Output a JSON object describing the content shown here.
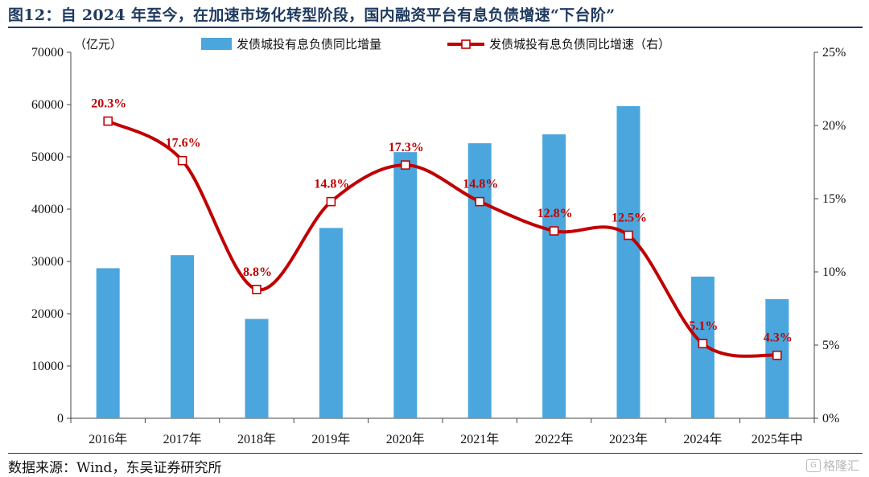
{
  "title": "图12：自 2024 年至今，在加速市场化转型阶段，国内融资平台有息负债增速“下台阶”",
  "source": "数据来源：Wind，东吴证券研究所",
  "watermark": "格隆汇",
  "chart_data": {
    "type": "bar",
    "categories": [
      "2016年",
      "2017年",
      "2018年",
      "2019年",
      "2020年",
      "2021年",
      "2022年",
      "2023年",
      "2024年",
      "2025年中"
    ],
    "y_left_unit": "（亿元）",
    "ylim_left": [
      0,
      70000
    ],
    "yticks_left": [
      "0",
      "10000",
      "20000",
      "30000",
      "40000",
      "50000",
      "60000",
      "70000"
    ],
    "ylim_right": [
      0,
      25
    ],
    "yticks_right": [
      "0%",
      "5%",
      "10%",
      "15%",
      "20%",
      "25%"
    ],
    "grid": false,
    "legend_position": "top",
    "colors": {
      "bar": "#4aa6dd",
      "line": "#c00000",
      "axis": "#444444"
    },
    "series": [
      {
        "name": "发债城投有息负债同比增量",
        "type": "bar",
        "axis": "left",
        "values": [
          28700,
          31200,
          19000,
          36400,
          50900,
          52600,
          54300,
          59700,
          27100,
          22800
        ]
      },
      {
        "name": "发债城投有息负债同比增速（右）",
        "type": "line",
        "axis": "right",
        "values": [
          20.3,
          17.6,
          8.8,
          14.8,
          17.3,
          14.8,
          12.8,
          12.5,
          5.1,
          4.3
        ],
        "labels": [
          "20.3%",
          "17.6%",
          "8.8%",
          "14.8%",
          "17.3%",
          "14.8%",
          "12.8%",
          "12.5%",
          "5.1%",
          "4.3%"
        ]
      }
    ]
  }
}
